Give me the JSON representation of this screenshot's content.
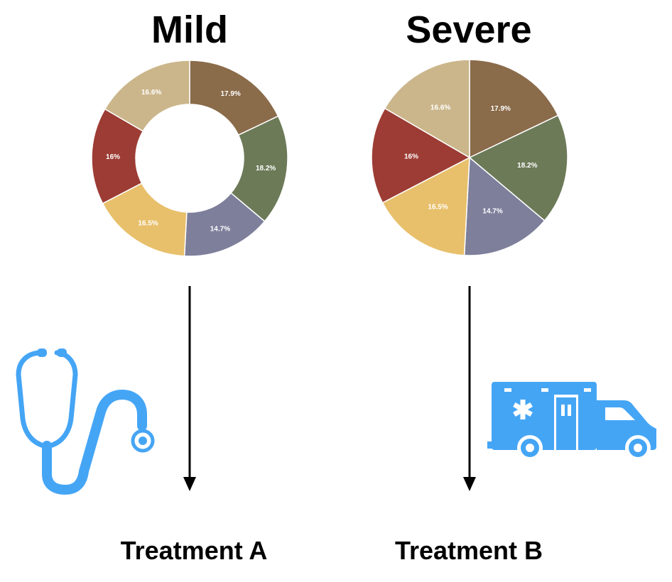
{
  "headings": {
    "mild": "Mild",
    "severe": "Severe"
  },
  "treatments": {
    "a": "Treatment A",
    "b": "Treatment B"
  },
  "icons": {
    "left": "stethoscope-icon",
    "right": "ambulance-icon",
    "icon_color": "#45a5f5"
  },
  "chart_data": [
    {
      "type": "pie",
      "variant": "donut",
      "title": "Mild",
      "slices": [
        {
          "label": "17.9%",
          "value": 17.9,
          "color": "#8a6b4a"
        },
        {
          "label": "18.2%",
          "value": 18.2,
          "color": "#6c7a58"
        },
        {
          "label": "14.7%",
          "value": 14.7,
          "color": "#7d7f9b"
        },
        {
          "label": "16.5%",
          "value": 16.5,
          "color": "#e8c06c"
        },
        {
          "label": "16%",
          "value": 16.0,
          "color": "#9c3c34"
        },
        {
          "label": "16.6%",
          "value": 16.6,
          "color": "#cbb68b"
        }
      ]
    },
    {
      "type": "pie",
      "variant": "pie",
      "title": "Severe",
      "slices": [
        {
          "label": "17.9%",
          "value": 17.9,
          "color": "#8a6b4a"
        },
        {
          "label": "18.2%",
          "value": 18.2,
          "color": "#6c7a58"
        },
        {
          "label": "14.7%",
          "value": 14.7,
          "color": "#7d7f9b"
        },
        {
          "label": "16.5%",
          "value": 16.5,
          "color": "#e8c06c"
        },
        {
          "label": "16%",
          "value": 16.0,
          "color": "#9c3c34"
        },
        {
          "label": "16.6%",
          "value": 16.6,
          "color": "#cbb68b"
        }
      ]
    }
  ]
}
